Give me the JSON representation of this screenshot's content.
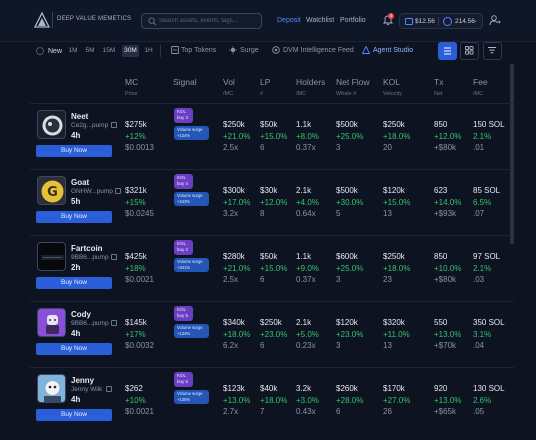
{
  "header": {
    "brand": "DEEP VALUE MEMETICS",
    "search_placeholder": "Search assets, events, tags...",
    "nav": [
      "Deposit",
      "Watchlist",
      "Portfolio"
    ],
    "notification_count": "3",
    "balance_usd": "$12.56",
    "balance_sol": "214.56"
  },
  "filters": {
    "new_label": "New",
    "timeframes": [
      "1M",
      "5M",
      "15M",
      "30M",
      "1H"
    ],
    "active_timeframe": "30M",
    "links": [
      "Top Tokens",
      "Surge",
      "DVM Intelligence Feed",
      "Agent Studio"
    ]
  },
  "columns": [
    {
      "label": "MC",
      "sub": "Price"
    },
    {
      "label": "Signal",
      "sub": ""
    },
    {
      "label": "Vol",
      "sub": "/MC"
    },
    {
      "label": "LP",
      "sub": "#"
    },
    {
      "label": "Holders",
      "sub": "/MC"
    },
    {
      "label": "Net Flow",
      "sub": "Whale #"
    },
    {
      "label": "KOL",
      "sub": "Velocity"
    },
    {
      "label": "Tx",
      "sub": "Net"
    },
    {
      "label": "Fee",
      "sub": "/MC"
    }
  ],
  "rows": [
    {
      "name": "Neet",
      "address": "Ce2g...pump",
      "age": "4h",
      "buy": "Buy Now",
      "mc": "$275k",
      "mc_change": "+12%",
      "price": "$0.0013",
      "kol": "KOL buy 3",
      "surge": "Volume surge +124%",
      "vol": "$250k",
      "vol_change": "+21.0%",
      "vol_mc": "2.5x",
      "lp": "$50k",
      "lp_change": "+15.0%",
      "lp_count": "6",
      "holders": "1.1k",
      "holders_change": "+8.0%",
      "holders_mc": "0.37x",
      "netflow": "$500k",
      "netflow_change": "+25.0%",
      "whales": "3",
      "kolv": "$250k",
      "kolv_change": "+18.0%",
      "kol_vel": "20",
      "tx": "850",
      "tx_change": "+12.0%",
      "tx_net": "+$80k",
      "fee": "150 SOL",
      "fee_change": "2.1%",
      "fee_mc": ".01"
    },
    {
      "name": "Goat",
      "address": "GNHW...pump",
      "age": "5h",
      "buy": "Buy Now",
      "mc": "$321k",
      "mc_change": "+15%",
      "price": "$0.0245",
      "kol": "KOL buy 4",
      "surge": "Volume surge +243%",
      "vol": "$300k",
      "vol_change": "+17.0%",
      "vol_mc": "3.2x",
      "lp": "$30k",
      "lp_change": "+12.0%",
      "lp_count": "8",
      "holders": "2.1k",
      "holders_change": "+4.0%",
      "holders_mc": "0.64x",
      "netflow": "$500k",
      "netflow_change": "+30.0%",
      "whales": "5",
      "kolv": "$120k",
      "kolv_change": "+15.0%",
      "kol_vel": "13",
      "tx": "623",
      "tx_change": "+14.0%",
      "tx_net": "+$93k",
      "fee": "85 SOL",
      "fee_change": "6.5%",
      "fee_mc": ".07"
    },
    {
      "name": "Fartcoin",
      "address": "9BB6...pump",
      "age": "2h",
      "buy": "Buy Now",
      "mc": "$425k",
      "mc_change": "+18%",
      "price": "$0.0021",
      "kol": "KOL buy 2",
      "surge": "Volume surge +341%",
      "vol": "$280k",
      "vol_change": "+21.0%",
      "vol_mc": "2.5x",
      "lp": "$50k",
      "lp_change": "+15.0%",
      "lp_count": "6",
      "holders": "1.1k",
      "holders_change": "+9.0%",
      "holders_mc": "0.37x",
      "netflow": "$600k",
      "netflow_change": "+25.0%",
      "whales": "3",
      "kolv": "$250k",
      "kolv_change": "+18.0%",
      "kol_vel": "23",
      "tx": "850",
      "tx_change": "+10.0%",
      "tx_net": "+$80k",
      "fee": "97 SOL",
      "fee_change": "2.1%",
      "fee_mc": ".03"
    },
    {
      "name": "Cody",
      "address": "9BB6...pump",
      "age": "4h",
      "buy": "Buy Now",
      "mc": "$145k",
      "mc_change": "+17%",
      "price": "$0.0032",
      "kol": "KOL buy 5",
      "surge": "Volume surge +124%",
      "vol": "$340k",
      "vol_change": "+18.0%",
      "vol_mc": "6.2x",
      "lp": "$250k",
      "lp_change": "+23.0%",
      "lp_count": "6",
      "holders": "2.1k",
      "holders_change": "+5.0%",
      "holders_mc": "0.23x",
      "netflow": "$120k",
      "netflow_change": "+23.0%",
      "whales": "3",
      "kolv": "$320k",
      "kolv_change": "+11.0%",
      "kol_vel": "13",
      "tx": "550",
      "tx_change": "+13.0%",
      "tx_net": "+$70k",
      "fee": "350 SOL",
      "fee_change": "3.1%",
      "fee_mc": ".04"
    },
    {
      "name": "Jenny",
      "address": "Jenny Wilk",
      "age": "4h",
      "buy": "Buy Now",
      "mc": "$262",
      "mc_change": "+10%",
      "price": "$0.0021",
      "kol": "KOL buy 5",
      "surge": "Volume surge +135%",
      "vol": "$123k",
      "vol_change": "+13.0%",
      "vol_mc": "2.7x",
      "lp": "$40k",
      "lp_change": "+18.0%",
      "lp_count": "7",
      "holders": "3.2k",
      "holders_change": "+3.0%",
      "holders_mc": "0.43x",
      "netflow": "$260k",
      "netflow_change": "+28.0%",
      "whales": "6",
      "kolv": "$170k",
      "kolv_change": "+27.0%",
      "kol_vel": "26",
      "tx": "920",
      "tx_change": "+13.0%",
      "tx_net": "+$65k",
      "fee": "130 SOL",
      "fee_change": "2.6%",
      "fee_mc": ".05"
    }
  ]
}
